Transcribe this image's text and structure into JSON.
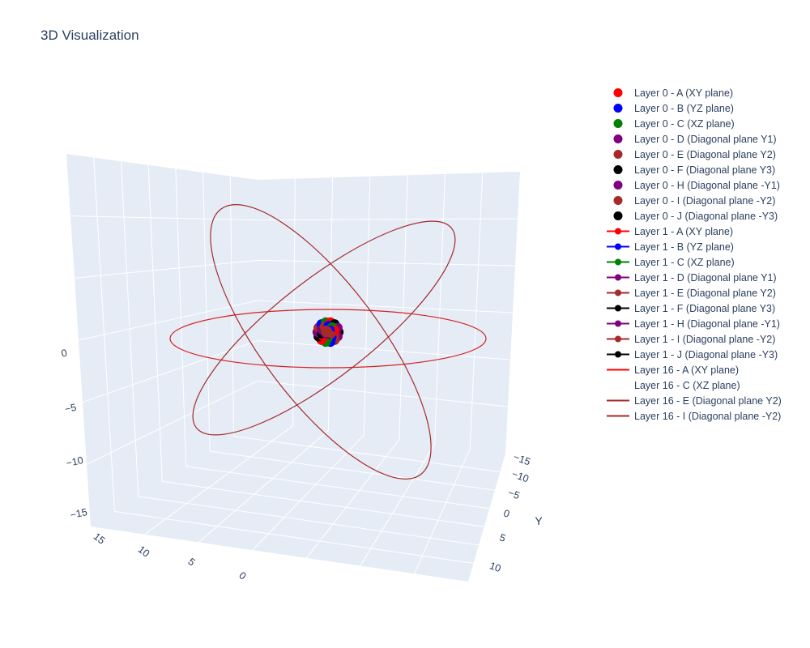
{
  "chart_data": {
    "type": "scatter3d",
    "title": "3D Visualization",
    "axes": {
      "x": {
        "ticks": [
          "15",
          "10",
          "5",
          "0"
        ]
      },
      "y": {
        "title": "Y",
        "ticks": [
          "−15",
          "−10",
          "−5",
          "0",
          "5",
          "10"
        ]
      },
      "z": {
        "ticks": [
          "0",
          "−5",
          "−10",
          "−15"
        ]
      }
    },
    "orbits": [
      {
        "name": "Layer 16 - A (XY plane)",
        "color": "#d62020",
        "radius": 16,
        "plane": "XY"
      },
      {
        "name": "Layer 16 - E (Diagonal plane Y2)",
        "color": "#a52a2a",
        "radius": 16,
        "plane": "Diagonal Y2"
      },
      {
        "name": "Layer 16 - I (Diagonal plane -Y2)",
        "color": "#a52a2a",
        "radius": 16,
        "plane": "Diagonal -Y2"
      }
    ],
    "center_cluster": {
      "colors": [
        "#000000",
        "#800080",
        "#a52a2a",
        "#0000ff",
        "#008000",
        "#ff0000"
      ]
    }
  },
  "legend": [
    {
      "label": "Layer 0 - A (XY plane)",
      "mode": "markers",
      "color": "#ff0000"
    },
    {
      "label": "Layer 0 - B (YZ plane)",
      "mode": "markers",
      "color": "#0000ff"
    },
    {
      "label": "Layer 0 - C (XZ plane)",
      "mode": "markers",
      "color": "#008000"
    },
    {
      "label": "Layer 0 - D (Diagonal plane Y1)",
      "mode": "markers",
      "color": "#800080"
    },
    {
      "label": "Layer 0 - E (Diagonal plane Y2)",
      "mode": "markers",
      "color": "#a52a2a"
    },
    {
      "label": "Layer 0 - F (Diagonal plane Y3)",
      "mode": "markers",
      "color": "#000000"
    },
    {
      "label": "Layer 0 - H (Diagonal plane -Y1)",
      "mode": "markers",
      "color": "#800080"
    },
    {
      "label": "Layer 0 - I (Diagonal plane -Y2)",
      "mode": "markers",
      "color": "#a52a2a"
    },
    {
      "label": "Layer 0 - J (Diagonal plane -Y3)",
      "mode": "markers",
      "color": "#000000"
    },
    {
      "label": "Layer 1 - A (XY plane)",
      "mode": "lines+markers",
      "color": "#ff0000"
    },
    {
      "label": "Layer 1 - B (YZ plane)",
      "mode": "lines+markers",
      "color": "#0000ff"
    },
    {
      "label": "Layer 1 - C (XZ plane)",
      "mode": "lines+markers",
      "color": "#008000"
    },
    {
      "label": "Layer 1 - D (Diagonal plane Y1)",
      "mode": "lines+markers",
      "color": "#800080"
    },
    {
      "label": "Layer 1 - E (Diagonal plane Y2)",
      "mode": "lines+markers",
      "color": "#a52a2a"
    },
    {
      "label": "Layer 1 - F (Diagonal plane Y3)",
      "mode": "lines+markers",
      "color": "#000000"
    },
    {
      "label": "Layer 1 - H (Diagonal plane -Y1)",
      "mode": "lines+markers",
      "color": "#800080"
    },
    {
      "label": "Layer 1 - I (Diagonal plane -Y2)",
      "mode": "lines+markers",
      "color": "#a52a2a"
    },
    {
      "label": "Layer 1 - J (Diagonal plane -Y3)",
      "mode": "lines+markers",
      "color": "#000000"
    },
    {
      "label": "Layer 16 - A (XY plane)",
      "mode": "lines",
      "color": "#ff0000"
    },
    {
      "label": "Layer 16 - C (XZ plane)",
      "mode": "lines",
      "color": "#008000",
      "hidden_line": true
    },
    {
      "label": "Layer 16 - E (Diagonal plane Y2)",
      "mode": "lines",
      "color": "#a52a2a"
    },
    {
      "label": "Layer 16 - I (Diagonal plane -Y2)",
      "mode": "lines",
      "color": "#a52a2a"
    }
  ]
}
